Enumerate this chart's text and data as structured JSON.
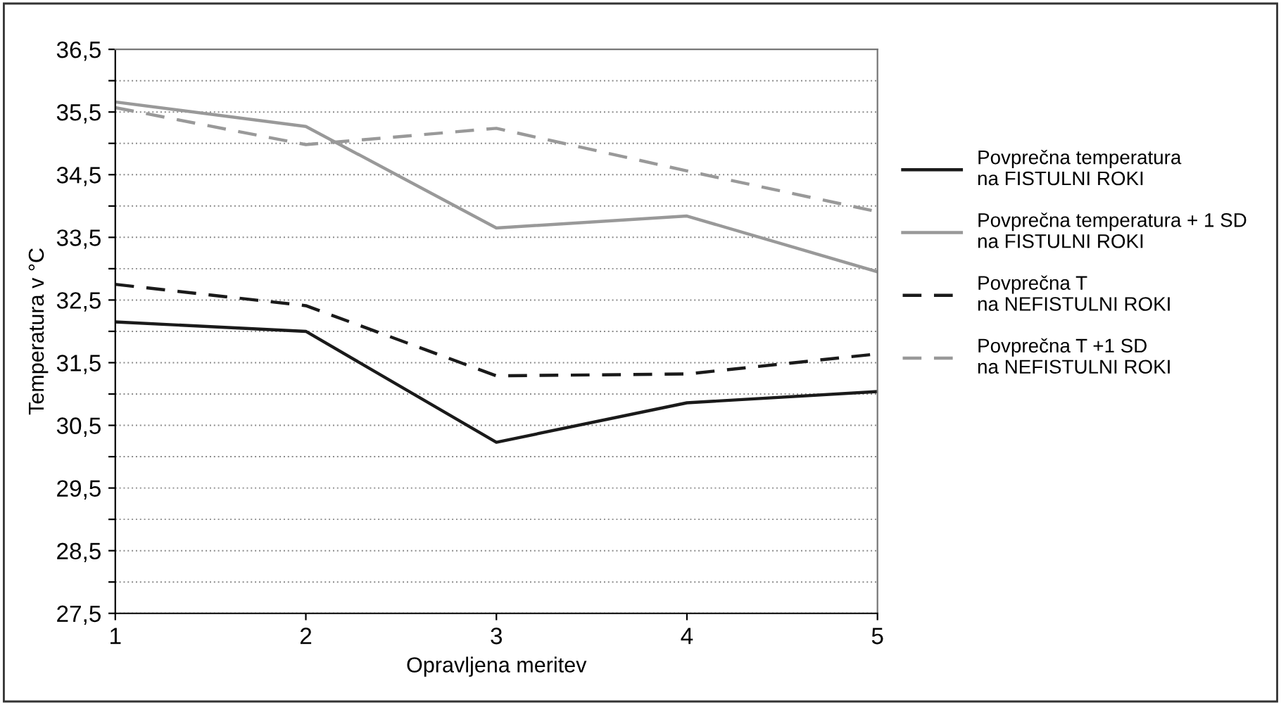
{
  "chart_data": {
    "type": "line",
    "xlabel": "Opravljena meritev",
    "ylabel": "Temperatura v °C",
    "x": [
      1,
      2,
      3,
      4,
      5
    ],
    "xlim": [
      1,
      5
    ],
    "xticks": [
      1,
      2,
      3,
      4,
      5
    ],
    "ylim": [
      27.5,
      36.5
    ],
    "yticks": [
      {
        "value": 27.5,
        "label": "27,5"
      },
      {
        "value": 28,
        "label": null
      },
      {
        "value": 28.5,
        "label": "28,5"
      },
      {
        "value": 29,
        "label": null
      },
      {
        "value": 29.5,
        "label": "29,5"
      },
      {
        "value": 30,
        "label": null
      },
      {
        "value": 30.5,
        "label": "30,5"
      },
      {
        "value": 31,
        "label": null
      },
      {
        "value": 31.5,
        "label": "31,5"
      },
      {
        "value": 32,
        "label": null
      },
      {
        "value": 32.5,
        "label": "32,5"
      },
      {
        "value": 33,
        "label": null
      },
      {
        "value": 33.5,
        "label": "33,5"
      },
      {
        "value": 34,
        "label": null
      },
      {
        "value": 34.5,
        "label": "34,5"
      },
      {
        "value": 35,
        "label": null
      },
      {
        "value": 35.5,
        "label": "35,5"
      },
      {
        "value": 36,
        "label": null
      },
      {
        "value": 36.5,
        "label": "36,5"
      }
    ],
    "grid": "y",
    "legend": "right",
    "marker": "none",
    "series": [
      {
        "name": "Povprečna temperatura\nna FISTULNI ROKI",
        "color": "#1a1a1a",
        "line_style": "solid",
        "values": [
          32.15,
          32.0,
          30.23,
          30.86,
          31.04
        ]
      },
      {
        "name": "Povprečna temperatura + 1 SD\nna FISTULNI ROKI",
        "color": "#999999",
        "line_style": "solid",
        "values": [
          35.66,
          35.27,
          33.65,
          33.84,
          32.95
        ]
      },
      {
        "name": "Povprečna T\nna NEFISTULNI ROKI",
        "color": "#1a1a1a",
        "line_style": "dashed",
        "values": [
          32.75,
          32.41,
          31.29,
          31.32,
          31.64
        ]
      },
      {
        "name": "Povprečna T +1 SD\nna NEFISTULNI ROKI",
        "color": "#999999",
        "line_style": "dashed",
        "values": [
          35.57,
          34.98,
          35.24,
          34.56,
          33.91
        ]
      }
    ]
  }
}
